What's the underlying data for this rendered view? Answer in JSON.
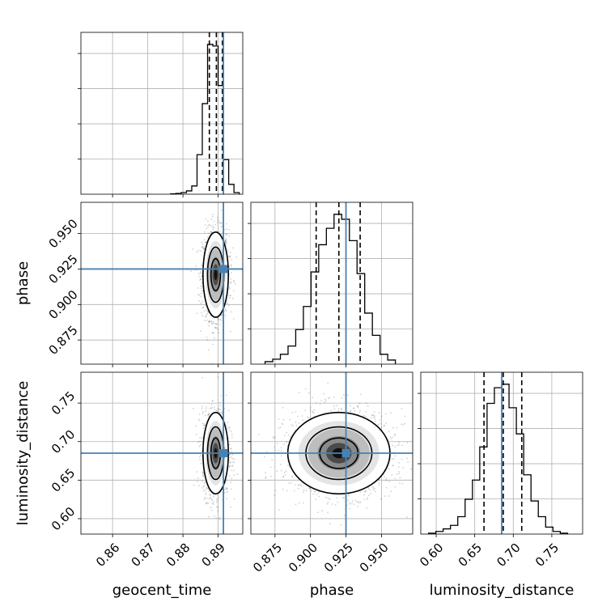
{
  "chart_data": {
    "type": "corner",
    "grid": true,
    "truth_color": "#4682b4",
    "hist_color": "#000000",
    "parameters": [
      "geocent_time",
      "phase",
      "luminosity_distance"
    ],
    "axes": {
      "geocent_time": {
        "label": "geocent_time",
        "range": [
          0.851,
          0.897
        ],
        "ticks": [
          0.86,
          0.87,
          0.88,
          0.89
        ],
        "tick_labels": [
          "0.86",
          "0.87",
          "0.88",
          "0.89"
        ],
        "truth": 0.8915,
        "quantiles": [
          0.8875,
          0.8895,
          0.8912
        ],
        "hist": {
          "edges": [
            0.8765,
            0.878,
            0.8795,
            0.881,
            0.8825,
            0.884,
            0.8855,
            0.887,
            0.8885,
            0.89,
            0.8915,
            0.893,
            0.8945,
            0.896
          ],
          "counts": [
            0.5,
            1,
            2,
            4,
            10,
            48,
            110,
            182,
            180,
            132,
            42,
            12,
            2
          ]
        }
      },
      "phase": {
        "label": "phase",
        "range": [
          0.858,
          0.972
        ],
        "ticks": [
          0.875,
          0.9,
          0.925,
          0.95
        ],
        "tick_labels": [
          "0.875",
          "0.900",
          "0.925",
          "0.950"
        ],
        "truth": 0.925,
        "quantiles": [
          0.904,
          0.92,
          0.935
        ],
        "hist": {
          "edges": [
            0.868,
            0.8734,
            0.8788,
            0.8842,
            0.8896,
            0.895,
            0.9004,
            0.9058,
            0.9112,
            0.9166,
            0.922,
            0.9274,
            0.9328,
            0.9382,
            0.9436,
            0.949,
            0.9544,
            0.9598
          ],
          "counts": [
            3,
            6,
            12,
            22,
            42,
            70,
            112,
            145,
            165,
            182,
            176,
            150,
            110,
            62,
            35,
            12,
            5
          ]
        }
      },
      "luminosity_distance": {
        "label": "luminosity_distance",
        "range": [
          0.58,
          0.79
        ],
        "ticks": [
          0.6,
          0.65,
          0.7,
          0.75
        ],
        "tick_labels": [
          "0.60",
          "0.65",
          "0.70",
          "0.75"
        ],
        "truth": 0.685,
        "quantiles": [
          0.662,
          0.687,
          0.711
        ],
        "hist": {
          "edges": [
            0.59,
            0.5995,
            0.609,
            0.6185,
            0.628,
            0.6375,
            0.647,
            0.6565,
            0.666,
            0.6755,
            0.685,
            0.6945,
            0.704,
            0.7135,
            0.723,
            0.7325,
            0.742,
            0.7515,
            0.761,
            0.7705
          ],
          "counts": [
            1,
            3,
            6,
            10,
            20,
            40,
            62,
            100,
            150,
            168,
            172,
            145,
            115,
            68,
            38,
            20,
            8,
            3,
            1
          ]
        }
      }
    },
    "tick_labels_2d_y": {
      "phase": [
        "0.875",
        "0.900",
        "0.925",
        "0.950"
      ],
      "luminosity_distance": [
        "0.60",
        "0.65",
        "0.70",
        "0.75"
      ]
    },
    "densities": [
      {
        "x": "geocent_time",
        "y": "phase",
        "mean": [
          0.8893,
          0.921
        ],
        "sd": [
          0.0015,
          0.0125
        ],
        "n_points": 1400
      },
      {
        "x": "geocent_time",
        "y": "luminosity_distance",
        "mean": [
          0.8893,
          0.685
        ],
        "sd": [
          0.0015,
          0.022
        ],
        "n_points": 1400
      },
      {
        "x": "phase",
        "y": "luminosity_distance",
        "mean": [
          0.92,
          0.685
        ],
        "sd": [
          0.015,
          0.022
        ],
        "n_points": 1800
      }
    ]
  }
}
